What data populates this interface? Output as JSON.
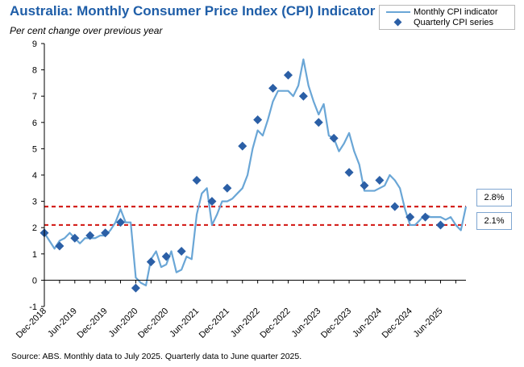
{
  "chart_data": {
    "type": "line",
    "title": "Australia: Monthly Consumer Price Index (CPI) Indicator",
    "subtitle": "Per cent change over previous year",
    "source": "Source: ABS.  Monthly data to July 2025. Quarterly data to June quarter 2025.",
    "ylim": [
      -1,
      9
    ],
    "y_ticks": [
      "-1",
      "0",
      "1",
      "2",
      "3",
      "4",
      "5",
      "6",
      "7",
      "8",
      "9"
    ],
    "x_tick_labels": [
      "Dec-2018",
      "Jun-2019",
      "Dec-2019",
      "Jun-2020",
      "Dec-2020",
      "Jun-2021",
      "Dec-2021",
      "Jun-2022",
      "Dec-2022",
      "Jun-2023",
      "Dec-2023",
      "Jun-2024",
      "Dec-2024",
      "Jun-2025"
    ],
    "x_start": "Dec-2018",
    "x_end": "Jul-2025",
    "series": [
      {
        "name": "Monthly CPI indicator",
        "color": "#6aa6d6",
        "values": [
          1.8,
          1.5,
          1.2,
          1.5,
          1.6,
          1.8,
          1.6,
          1.4,
          1.6,
          1.6,
          1.6,
          1.7,
          1.7,
          1.9,
          2.2,
          2.7,
          2.2,
          2.2,
          0.1,
          -0.1,
          -0.2,
          0.8,
          1.1,
          0.5,
          0.6,
          1.1,
          0.3,
          0.4,
          0.9,
          0.8,
          2.5,
          3.3,
          3.5,
          2.1,
          2.5,
          3.0,
          3.0,
          3.1,
          3.3,
          3.5,
          4.0,
          5.0,
          5.7,
          5.5,
          6.1,
          6.8,
          7.2,
          7.2,
          7.2,
          7.0,
          7.4,
          8.4,
          7.4,
          6.8,
          6.3,
          6.7,
          5.5,
          5.4,
          4.9,
          5.2,
          5.6,
          4.9,
          4.4,
          3.4,
          3.4,
          3.4,
          3.5,
          3.6,
          4.0,
          3.8,
          3.5,
          2.7,
          2.1,
          2.1,
          2.3,
          2.5,
          2.4,
          2.4,
          2.4,
          2.3,
          2.4,
          2.1,
          1.9,
          2.8
        ]
      },
      {
        "name": "Quarterly CPI series",
        "color": "#2b5fa6",
        "points": [
          [
            0,
            1.8
          ],
          [
            3,
            1.3
          ],
          [
            6,
            1.6
          ],
          [
            9,
            1.7
          ],
          [
            12,
            1.8
          ],
          [
            15,
            2.2
          ],
          [
            18,
            -0.3
          ],
          [
            21,
            0.7
          ],
          [
            24,
            0.9
          ],
          [
            27,
            1.1
          ],
          [
            30,
            3.8
          ],
          [
            33,
            3.0
          ],
          [
            36,
            3.5
          ],
          [
            39,
            5.1
          ],
          [
            42,
            6.1
          ],
          [
            45,
            7.3
          ],
          [
            48,
            7.8
          ],
          [
            51,
            7.0
          ],
          [
            54,
            6.0
          ],
          [
            57,
            5.4
          ],
          [
            60,
            4.1
          ],
          [
            63,
            3.6
          ],
          [
            66,
            3.8
          ],
          [
            69,
            2.8
          ],
          [
            72,
            2.4
          ],
          [
            75,
            2.4
          ],
          [
            78,
            2.1
          ]
        ]
      }
    ],
    "reference_lines": [
      {
        "value": 2.8,
        "label": "2.8%",
        "color": "#d4221e"
      },
      {
        "value": 2.1,
        "label": "2.1%",
        "color": "#d4221e"
      }
    ],
    "legend_position": "top-right"
  }
}
